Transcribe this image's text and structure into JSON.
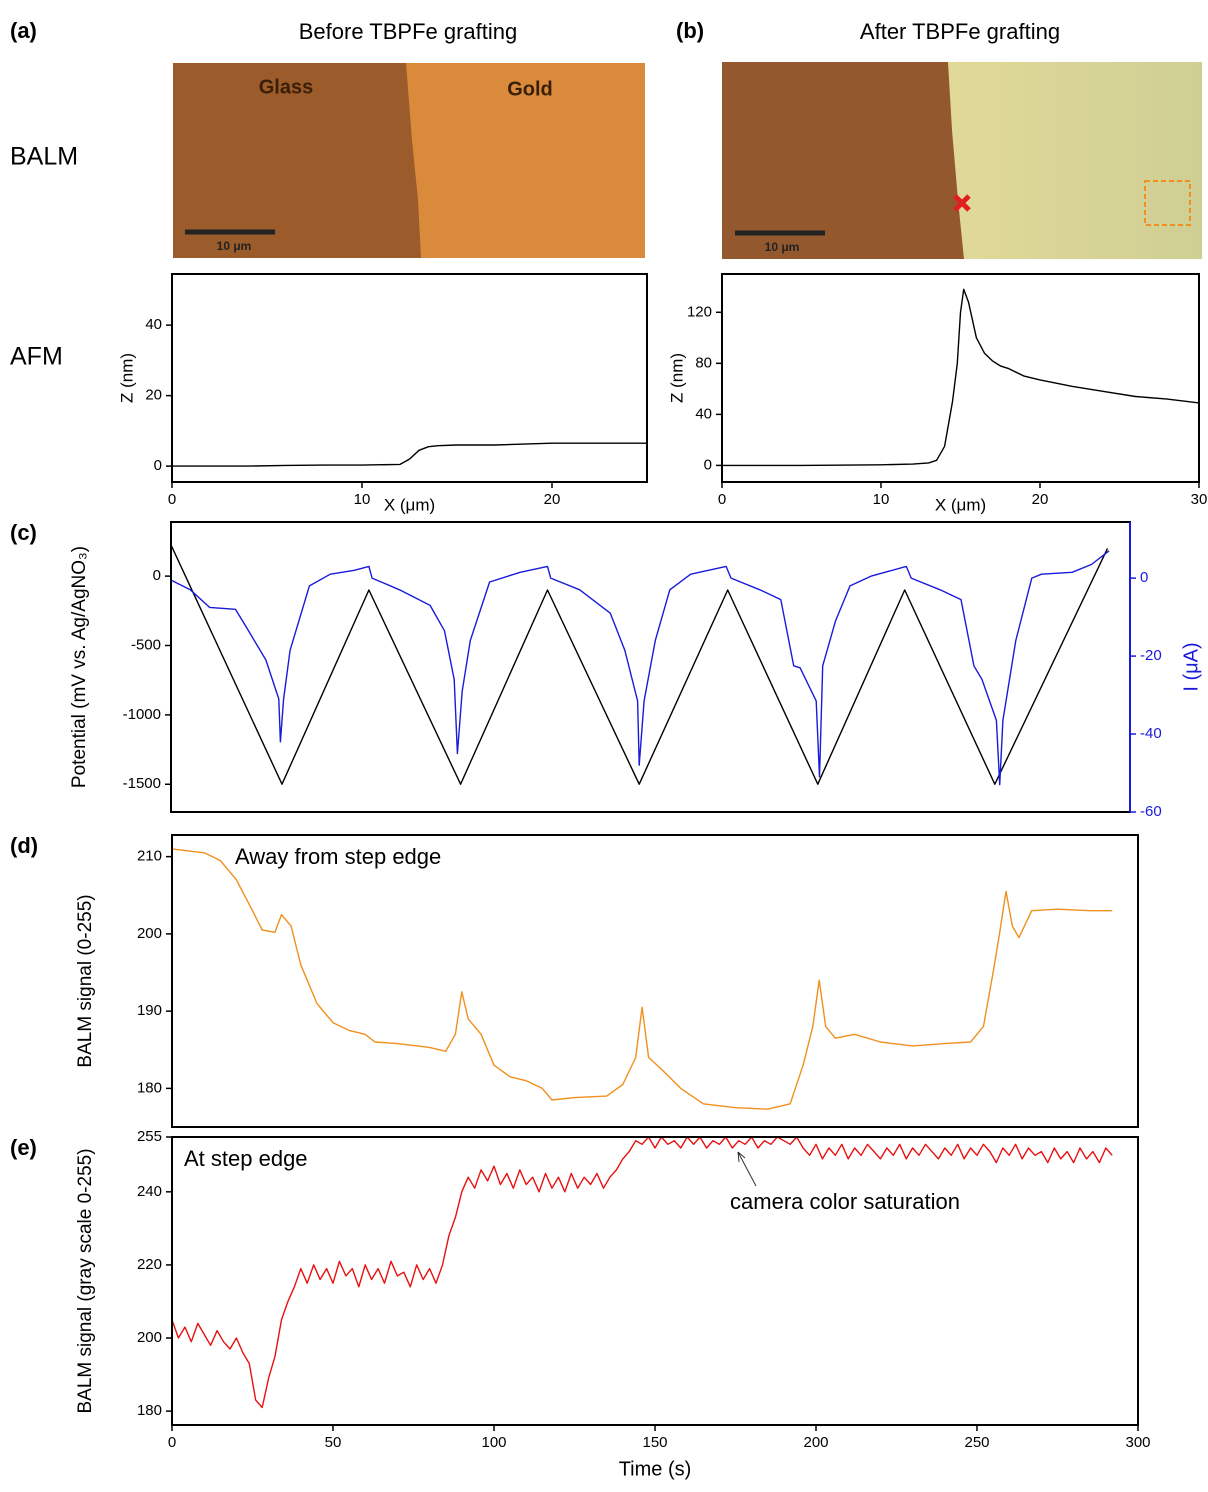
{
  "figure": {
    "row_labels": [
      "BALM",
      "AFM"
    ],
    "panels": [
      {
        "label": "(a)",
        "title": "Before TBPFe grafting",
        "image_texts": [
          "Glass",
          "Gold"
        ],
        "scale_bar": "10 μm"
      },
      {
        "label": "(b)",
        "title": "After  TBPFe grafting",
        "scale_bar": "10 μm"
      }
    ]
  },
  "chart_data": [
    {
      "type": "line",
      "x_label": "X (μm)",
      "y_label": "Z (nm)",
      "xlim": [
        0,
        25
      ],
      "ylim": [
        -4.5,
        54.5
      ],
      "xticks": [
        0,
        10,
        20
      ],
      "yticks": [
        0,
        20,
        40
      ],
      "series": [
        {
          "color": "#000000",
          "x": [
            0,
            2,
            4,
            6,
            8,
            10,
            12,
            12.5,
            13,
            13.5,
            14,
            15,
            17,
            20,
            22,
            25
          ],
          "values": [
            0,
            0,
            0,
            0.2,
            0.3,
            0.3,
            0.5,
            2,
            4.5,
            5.5,
            5.8,
            6,
            6,
            6.5,
            6.5,
            6.5
          ]
        }
      ]
    },
    {
      "type": "line",
      "x_label": "X (μm)",
      "y_label": "Z (nm)",
      "xlim": [
        0,
        30
      ],
      "ylim": [
        -13,
        150
      ],
      "xticks": [
        0,
        10,
        20,
        30
      ],
      "yticks": [
        0,
        40,
        80,
        120
      ],
      "series": [
        {
          "color": "#000000",
          "x": [
            0,
            5,
            10,
            12,
            13,
            13.5,
            14,
            14.5,
            14.8,
            15,
            15.2,
            15.5,
            16,
            16.5,
            17,
            17.5,
            18,
            19,
            20,
            22,
            24,
            26,
            28,
            30
          ],
          "values": [
            0,
            0,
            0.5,
            1,
            2,
            4,
            15,
            50,
            80,
            120,
            138,
            128,
            100,
            88,
            82,
            78,
            76,
            70,
            67,
            62,
            58,
            54,
            52,
            49
          ]
        }
      ]
    },
    {
      "type": "line",
      "label": "(c)",
      "y_label": "Potential (mV vs. Ag/AgNO₃)",
      "y2_label": "I (μA)",
      "xlim": [
        0,
        298
      ],
      "ylim": [
        -1700,
        390
      ],
      "yticks": [
        0,
        -500,
        -1000,
        -1500
      ],
      "y2lim": [
        -60,
        14.4
      ],
      "y2ticks": [
        0,
        -20,
        -40,
        -60
      ],
      "series": [
        {
          "color": "#000000",
          "x": [
            0,
            34.5,
            61.5,
            90,
            117,
            145.5,
            173,
            201,
            228,
            256,
            291
          ],
          "values": [
            225,
            -1500,
            -100,
            -1500,
            -100,
            -1500,
            -100,
            -1500,
            -100,
            -1500,
            200
          ]
        },
        {
          "color": "#1a1adb",
          "axis": "y2",
          "x": [
            0,
            6,
            12,
            20,
            23,
            29.5,
            33.5,
            34,
            35,
            37,
            43,
            49.5,
            57,
            61.5,
            62.5,
            71,
            80.5,
            85,
            88,
            89,
            90.5,
            93,
            99,
            108.5,
            117,
            118,
            127,
            136.5,
            141,
            145,
            145.5,
            147,
            150.5,
            155,
            161.5,
            172.5,
            174,
            183,
            189.5,
            193.5,
            195.5,
            200.5,
            201.5,
            202.5,
            206.5,
            211,
            217.5,
            228.5,
            230,
            239,
            245.5,
            249.5,
            252,
            256.5,
            257.5,
            258.5,
            262.5,
            267.5,
            270.5,
            280,
            286,
            291.5
          ],
          "values": [
            -0.5,
            -3,
            -7.5,
            -8,
            -12,
            -21,
            -31,
            -42,
            -31,
            -18.5,
            -2,
            1,
            2,
            3,
            0,
            -3,
            -7,
            -13.5,
            -26,
            -45,
            -29,
            -16,
            -1,
            1.5,
            3,
            0,
            -3,
            -9,
            -18.5,
            -31.5,
            -48,
            -31.5,
            -16,
            -3,
            1,
            3,
            0,
            -3,
            -5.5,
            -22.5,
            -23,
            -31.5,
            -51,
            -22.5,
            -11,
            -2,
            0.5,
            3,
            0,
            -3,
            -5.5,
            -22.5,
            -26,
            -36.5,
            -53,
            -36.5,
            -16,
            0,
            1,
            1.5,
            3.5,
            7
          ]
        }
      ]
    },
    {
      "type": "line",
      "label": "(d)",
      "y_label": "BALM signal (0-255)",
      "annotations": [
        "Away from step edge"
      ],
      "xlim": [
        0,
        300
      ],
      "ylim": [
        175,
        212.8
      ],
      "yticks": [
        180,
        190,
        200,
        210
      ],
      "series": [
        {
          "color": "#f0901e",
          "x": [
            0,
            10,
            15,
            20,
            25,
            28,
            32,
            34,
            37,
            40,
            45,
            50,
            55,
            60,
            63,
            70,
            80,
            85,
            88,
            90,
            92,
            96,
            100,
            105,
            110,
            115,
            118,
            125,
            135,
            140,
            144,
            146,
            148,
            152,
            158,
            165,
            175,
            185,
            192,
            196,
            199,
            201,
            203,
            206,
            212,
            220,
            230,
            240,
            248,
            252,
            255,
            257,
            259,
            261,
            263,
            267,
            275,
            285,
            292
          ],
          "values": [
            211,
            210.5,
            209.5,
            207,
            203,
            200.5,
            200.2,
            202.5,
            201,
            196,
            191,
            188.5,
            187.5,
            187,
            186,
            185.8,
            185.3,
            184.8,
            187,
            192.5,
            189,
            187,
            183,
            181.5,
            181,
            180,
            178.5,
            178.8,
            179,
            180.5,
            184,
            190.5,
            184,
            182.5,
            180,
            178,
            177.5,
            177.3,
            178,
            183,
            188,
            194,
            188,
            186.5,
            187,
            186,
            185.5,
            185.8,
            186,
            188,
            195,
            200,
            205.5,
            201,
            199.5,
            203,
            203.2,
            203,
            203
          ]
        }
      ]
    },
    {
      "type": "line",
      "label": "(e)",
      "x_label": "Time (s)",
      "y_label": "BALM signal (gray scale 0-255)",
      "annotations": [
        "At step edge",
        "camera color saturation"
      ],
      "xlim": [
        0,
        300
      ],
      "ylim": [
        176.2,
        255
      ],
      "xticks": [
        0,
        50,
        100,
        150,
        200,
        250,
        300
      ],
      "yticks": [
        180,
        200,
        220,
        240,
        255
      ],
      "series": [
        {
          "color": "#e81010",
          "x": [
            0,
            2,
            4,
            6,
            8,
            10,
            12,
            14,
            16,
            18,
            20,
            22,
            24,
            26,
            28,
            30,
            32,
            34,
            36,
            38,
            40,
            42,
            44,
            46,
            48,
            50,
            52,
            54,
            56,
            58,
            60,
            62,
            64,
            66,
            68,
            70,
            72,
            74,
            76,
            78,
            80,
            82,
            84,
            86,
            88,
            90,
            92,
            94,
            96,
            98,
            100,
            102,
            104,
            106,
            108,
            110,
            112,
            114,
            116,
            118,
            120,
            122,
            124,
            126,
            128,
            130,
            132,
            134,
            136,
            138,
            140,
            142,
            144,
            146,
            148,
            150,
            152,
            154,
            156,
            158,
            160,
            162,
            164,
            166,
            168,
            170,
            172,
            174,
            176,
            178,
            180,
            182,
            184,
            186,
            188,
            190,
            192,
            194,
            196,
            198,
            200,
            202,
            204,
            206,
            208,
            210,
            212,
            214,
            216,
            218,
            220,
            222,
            224,
            226,
            228,
            230,
            232,
            234,
            236,
            238,
            240,
            242,
            244,
            246,
            248,
            250,
            252,
            254,
            256,
            258,
            260,
            262,
            264,
            266,
            268,
            270,
            272,
            274,
            276,
            278,
            280,
            282,
            284,
            286,
            288,
            290,
            292
          ],
          "values": [
            205,
            200,
            203,
            199,
            204,
            201,
            198,
            202,
            199,
            197,
            200,
            196,
            193,
            183,
            181,
            189,
            195,
            205,
            210,
            214,
            219,
            215,
            220,
            216,
            219,
            215,
            221,
            217,
            219,
            214,
            220,
            216,
            219,
            215,
            221,
            217,
            218,
            214,
            220,
            216,
            219,
            215,
            220,
            228,
            233,
            240,
            244,
            241,
            246,
            243,
            247,
            242,
            245,
            241,
            246,
            242,
            244,
            240,
            245,
            241,
            244,
            240,
            245,
            241,
            244,
            242,
            245,
            241,
            244,
            246,
            249,
            251,
            254,
            253,
            255,
            252,
            255,
            253,
            254,
            252,
            255,
            253,
            255,
            252,
            254,
            253,
            255,
            252,
            254,
            253,
            255,
            252,
            254,
            253,
            255,
            254,
            253,
            255,
            252,
            250,
            253,
            249,
            252,
            250,
            253,
            249,
            252,
            250,
            253,
            251,
            249,
            252,
            250,
            253,
            249,
            252,
            250,
            253,
            251,
            249,
            252,
            250,
            253,
            249,
            252,
            250,
            253,
            251,
            248,
            252,
            250,
            253,
            249,
            252,
            250,
            251,
            248,
            252,
            249,
            251,
            248,
            252,
            249,
            251,
            248,
            252,
            250
          ]
        }
      ]
    }
  ]
}
